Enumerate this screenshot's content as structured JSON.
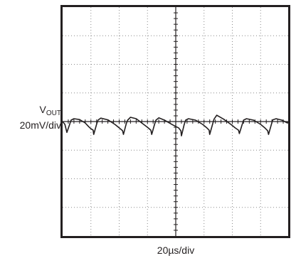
{
  "chart_data": {
    "type": "line",
    "title": "",
    "xlabel": "20µs/div",
    "ylabel": {
      "name": "V",
      "subscript": "OUT",
      "scale": "20mV/div"
    },
    "x_divisions": 8,
    "y_divisions": 8,
    "grid": true,
    "colors": {
      "trace": "#231f20",
      "frame": "#231f20",
      "grid": "#8a8a8a"
    },
    "series": [
      {
        "x": [
          0,
          0.08,
          0.15,
          0.25,
          0.3,
          0.4,
          0.6,
          0.8,
          0.92,
          1.0,
          1.08,
          1.1,
          1.2,
          1.25,
          1.35,
          1.6,
          1.85,
          2.0,
          2.12,
          2.15,
          2.25,
          2.3,
          2.4,
          2.6,
          2.8,
          3.0,
          3.12,
          3.15,
          3.25,
          3.3,
          3.4,
          3.6,
          3.9,
          4.1,
          4.18,
          4.2,
          4.3,
          4.35,
          4.45,
          4.7,
          4.95,
          5.1,
          5.18,
          5.2,
          5.3,
          5.35,
          5.45,
          5.7,
          5.95,
          6.1,
          6.22,
          6.25,
          6.35,
          6.4,
          6.5,
          6.75,
          7.0,
          7.15,
          7.25,
          7.28,
          7.38,
          7.43,
          7.55,
          7.75,
          7.95,
          8.0
        ],
        "y": [
          0.0,
          -0.1,
          -0.38,
          -0.1,
          0.05,
          0.1,
          0.07,
          -0.05,
          -0.18,
          -0.25,
          -0.3,
          -0.45,
          -0.1,
          0.05,
          0.12,
          0.06,
          -0.1,
          -0.22,
          -0.32,
          -0.45,
          -0.08,
          0.05,
          0.15,
          0.1,
          -0.05,
          -0.2,
          -0.3,
          -0.45,
          -0.1,
          0.05,
          0.13,
          0.05,
          -0.12,
          -0.22,
          -0.32,
          -0.5,
          -0.1,
          0.05,
          0.1,
          0.05,
          -0.1,
          -0.22,
          -0.3,
          -0.45,
          -0.1,
          0.08,
          0.22,
          0.08,
          -0.1,
          -0.22,
          -0.3,
          -0.42,
          -0.1,
          0.05,
          0.1,
          0.05,
          -0.1,
          -0.22,
          -0.32,
          -0.45,
          -0.1,
          0.06,
          0.1,
          0.05,
          -0.05,
          0.0
        ]
      }
    ]
  }
}
